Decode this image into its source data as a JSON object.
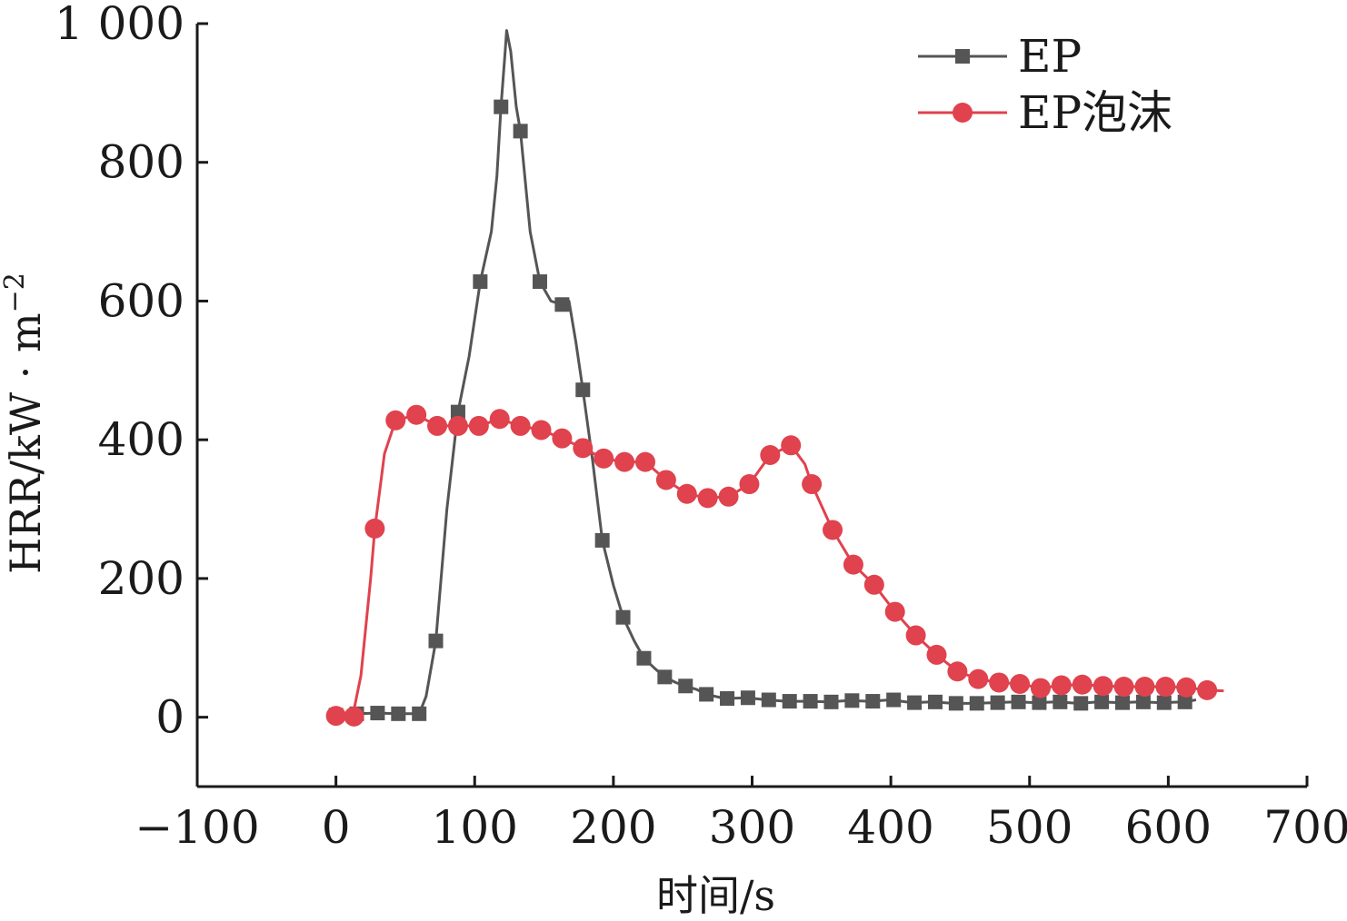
{
  "chart_data": {
    "type": "line",
    "xlabel": "时间/s",
    "ylabel": "HRR/kW · m",
    "ylabel_superscript": "−2",
    "xlim": [
      -100,
      700
    ],
    "ylim": [
      -100,
      1000
    ],
    "x_ticks": [
      -100,
      0,
      100,
      200,
      300,
      400,
      500,
      600,
      700
    ],
    "x_tick_labels": [
      "−100",
      "0",
      "100",
      "200",
      "300",
      "400",
      "500",
      "600",
      "700"
    ],
    "y_ticks": [
      0,
      200,
      400,
      600,
      800,
      1000
    ],
    "y_tick_labels": [
      "0",
      "200",
      "400",
      "600",
      "800",
      "1 000"
    ],
    "grid": false,
    "legend": "top-right",
    "series": [
      {
        "name": "EP",
        "color": "#555555",
        "marker": "square",
        "line": [
          [
            0,
            3
          ],
          [
            15,
            5
          ],
          [
            30,
            6
          ],
          [
            45,
            5
          ],
          [
            60,
            5
          ],
          [
            65,
            30
          ],
          [
            72,
            110
          ],
          [
            80,
            300
          ],
          [
            88,
            440
          ],
          [
            96,
            520
          ],
          [
            104,
            628
          ],
          [
            112,
            700
          ],
          [
            116,
            780
          ],
          [
            119,
            880
          ],
          [
            122,
            960
          ],
          [
            123,
            990
          ],
          [
            126,
            960
          ],
          [
            130,
            880
          ],
          [
            133,
            845
          ],
          [
            140,
            700
          ],
          [
            147,
            628
          ],
          [
            155,
            600
          ],
          [
            163,
            595
          ],
          [
            168,
            600
          ],
          [
            173,
            540
          ],
          [
            178,
            472
          ],
          [
            185,
            370
          ],
          [
            192,
            255
          ],
          [
            200,
            190
          ],
          [
            207,
            144
          ],
          [
            215,
            110
          ],
          [
            222,
            85
          ],
          [
            230,
            70
          ],
          [
            237,
            58
          ],
          [
            245,
            50
          ],
          [
            252,
            45
          ],
          [
            260,
            40
          ],
          [
            267,
            33
          ],
          [
            280,
            27
          ],
          [
            297,
            28
          ],
          [
            310,
            25
          ],
          [
            325,
            23
          ],
          [
            340,
            23
          ],
          [
            355,
            22
          ],
          [
            370,
            24
          ],
          [
            385,
            23
          ],
          [
            400,
            25
          ],
          [
            415,
            21
          ],
          [
            430,
            22
          ],
          [
            445,
            20
          ],
          [
            460,
            20
          ],
          [
            475,
            21
          ],
          [
            490,
            22
          ],
          [
            505,
            21
          ],
          [
            520,
            22
          ],
          [
            535,
            20
          ],
          [
            550,
            22
          ],
          [
            565,
            21
          ],
          [
            580,
            22
          ],
          [
            595,
            21
          ],
          [
            612,
            22
          ],
          [
            620,
            25
          ]
        ],
        "points": [
          [
            0,
            3
          ],
          [
            15,
            5
          ],
          [
            30,
            6
          ],
          [
            45,
            5
          ],
          [
            60,
            5
          ],
          [
            72,
            110
          ],
          [
            88,
            440
          ],
          [
            104,
            628
          ],
          [
            119,
            880
          ],
          [
            133,
            845
          ],
          [
            147,
            628
          ],
          [
            163,
            595
          ],
          [
            178,
            472
          ],
          [
            192,
            255
          ],
          [
            207,
            144
          ],
          [
            222,
            85
          ],
          [
            237,
            58
          ],
          [
            252,
            45
          ],
          [
            267,
            33
          ],
          [
            282,
            27
          ],
          [
            297,
            28
          ],
          [
            312,
            25
          ],
          [
            327,
            23
          ],
          [
            342,
            23
          ],
          [
            357,
            22
          ],
          [
            372,
            24
          ],
          [
            387,
            23
          ],
          [
            402,
            25
          ],
          [
            417,
            21
          ],
          [
            432,
            22
          ],
          [
            447,
            20
          ],
          [
            462,
            20
          ],
          [
            477,
            21
          ],
          [
            492,
            22
          ],
          [
            507,
            21
          ],
          [
            522,
            22
          ],
          [
            537,
            20
          ],
          [
            552,
            22
          ],
          [
            567,
            21
          ],
          [
            582,
            22
          ],
          [
            597,
            21
          ],
          [
            612,
            22
          ]
        ]
      },
      {
        "name": "EP泡沫",
        "color": "#e0424e",
        "marker": "circle",
        "line": [
          [
            0,
            2
          ],
          [
            12,
            1
          ],
          [
            18,
            60
          ],
          [
            25,
            200
          ],
          [
            28,
            272
          ],
          [
            35,
            380
          ],
          [
            43,
            428
          ],
          [
            58,
            436
          ],
          [
            73,
            420
          ],
          [
            88,
            420
          ],
          [
            103,
            420
          ],
          [
            118,
            430
          ],
          [
            133,
            420
          ],
          [
            148,
            414
          ],
          [
            163,
            402
          ],
          [
            178,
            388
          ],
          [
            193,
            373
          ],
          [
            208,
            368
          ],
          [
            223,
            368
          ],
          [
            238,
            342
          ],
          [
            253,
            322
          ],
          [
            268,
            316
          ],
          [
            283,
            318
          ],
          [
            298,
            336
          ],
          [
            313,
            378
          ],
          [
            328,
            392
          ],
          [
            338,
            365
          ],
          [
            343,
            336
          ],
          [
            358,
            270
          ],
          [
            373,
            220
          ],
          [
            388,
            191
          ],
          [
            403,
            152
          ],
          [
            418,
            118
          ],
          [
            433,
            90
          ],
          [
            448,
            66
          ],
          [
            463,
            55
          ],
          [
            478,
            50
          ],
          [
            493,
            48
          ],
          [
            508,
            42
          ],
          [
            523,
            46
          ],
          [
            538,
            47
          ],
          [
            553,
            45
          ],
          [
            568,
            44
          ],
          [
            583,
            44
          ],
          [
            598,
            44
          ],
          [
            613,
            43
          ],
          [
            628,
            39
          ],
          [
            640,
            38
          ]
        ],
        "points": [
          [
            0,
            2
          ],
          [
            13,
            1
          ],
          [
            28,
            272
          ],
          [
            43,
            428
          ],
          [
            58,
            436
          ],
          [
            73,
            420
          ],
          [
            88,
            420
          ],
          [
            103,
            420
          ],
          [
            118,
            430
          ],
          [
            133,
            420
          ],
          [
            148,
            414
          ],
          [
            163,
            402
          ],
          [
            178,
            388
          ],
          [
            193,
            373
          ],
          [
            208,
            368
          ],
          [
            223,
            368
          ],
          [
            238,
            342
          ],
          [
            253,
            322
          ],
          [
            268,
            316
          ],
          [
            283,
            318
          ],
          [
            298,
            336
          ],
          [
            313,
            378
          ],
          [
            328,
            392
          ],
          [
            343,
            336
          ],
          [
            358,
            270
          ],
          [
            373,
            220
          ],
          [
            388,
            191
          ],
          [
            403,
            152
          ],
          [
            418,
            118
          ],
          [
            433,
            90
          ],
          [
            448,
            66
          ],
          [
            463,
            55
          ],
          [
            478,
            50
          ],
          [
            493,
            48
          ],
          [
            508,
            42
          ],
          [
            523,
            46
          ],
          [
            538,
            47
          ],
          [
            553,
            45
          ],
          [
            568,
            44
          ],
          [
            583,
            44
          ],
          [
            598,
            44
          ],
          [
            613,
            43
          ],
          [
            628,
            39
          ]
        ]
      }
    ]
  }
}
